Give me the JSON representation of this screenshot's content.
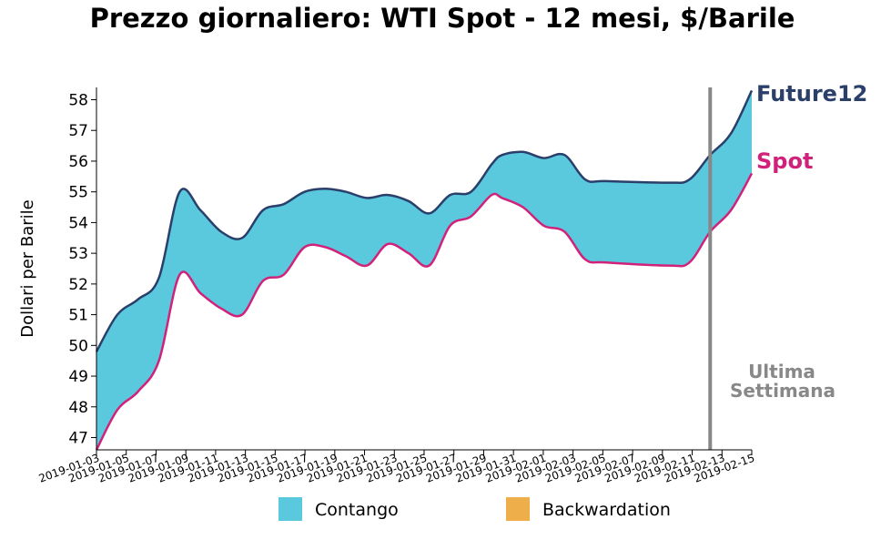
{
  "chart_data": {
    "type": "area",
    "title": "Prezzo giornaliero: WTI Spot - 12 mesi, $/Barile",
    "ylabel": "Dollari per Barile",
    "xlabel": "",
    "ylim": [
      46.6,
      58.4
    ],
    "yticks": [
      47,
      48,
      49,
      50,
      51,
      52,
      53,
      54,
      55,
      56,
      57,
      58
    ],
    "x_tick_labels": [
      "2019-01-03",
      "2019-01-05",
      "2019-01-07",
      "2019-01-09",
      "2019-01-11",
      "2019-01-13",
      "2019-01-15",
      "2019-01-17",
      "2019-01-19",
      "2019-01-21",
      "2019-01-23",
      "2019-01-25",
      "2019-01-27",
      "2019-01-29",
      "2019-01-31",
      "2019-02-01",
      "2019-02-03",
      "2019-02-05",
      "2019-02-07",
      "2019-02-09",
      "2019-02-11",
      "2019-02-13",
      "2019-02-15"
    ],
    "x": [
      "2019-01-03",
      "2019-01-04",
      "2019-01-07",
      "2019-01-08",
      "2019-01-09",
      "2019-01-10",
      "2019-01-11",
      "2019-01-14",
      "2019-01-15",
      "2019-01-16",
      "2019-01-17",
      "2019-01-18",
      "2019-01-22",
      "2019-01-23",
      "2019-01-24",
      "2019-01-25",
      "2019-01-28",
      "2019-01-29",
      "2019-01-30",
      "2019-01-31",
      "2019-02-01",
      "2019-02-04",
      "2019-02-05",
      "2019-02-06",
      "2019-02-07",
      "2019-02-08",
      "2019-02-11",
      "2019-02-12",
      "2019-02-13",
      "2019-02-14",
      "2019-02-15"
    ],
    "x_positions": [
      0,
      1,
      2,
      3,
      4,
      5,
      6,
      7,
      8,
      9,
      10,
      11,
      12,
      13,
      14,
      15,
      16,
      17,
      18,
      19,
      19.5,
      20.5,
      21.5,
      22.5,
      23.5,
      24.5,
      27.5,
      28.5,
      29.5,
      30.5,
      31.5
    ],
    "series": [
      {
        "name": "Future12",
        "color": "#2a3f6a",
        "values": [
          49.8,
          51.0,
          51.5,
          52.2,
          55.0,
          54.4,
          53.7,
          53.5,
          54.4,
          54.6,
          55.0,
          55.1,
          55.0,
          54.8,
          54.9,
          54.7,
          54.3,
          54.9,
          55.0,
          55.9,
          56.2,
          56.3,
          56.1,
          56.2,
          55.4,
          55.35,
          55.3,
          55.4,
          56.2,
          56.9,
          58.3
        ]
      },
      {
        "name": "Spot",
        "color": "#d0227a",
        "values": [
          46.6,
          47.9,
          48.5,
          49.5,
          52.3,
          51.7,
          51.2,
          51.0,
          52.1,
          52.3,
          53.2,
          53.2,
          52.9,
          52.6,
          53.3,
          53.0,
          52.6,
          53.9,
          54.2,
          54.9,
          54.8,
          54.5,
          53.9,
          53.7,
          52.8,
          52.7,
          52.6,
          52.7,
          53.7,
          54.4,
          55.6
        ]
      }
    ],
    "fill": {
      "contango_color": "#5ac8dd",
      "backwardation_color": "#eeae4a"
    },
    "vline": {
      "x_position": 29.5,
      "color": "#888888"
    },
    "annotation": [
      "Ultima",
      "Settimana"
    ],
    "legend": {
      "placement": "bottom",
      "items": [
        {
          "label": "Contango",
          "color": "#5ac8dd"
        },
        {
          "label": "Backwardation",
          "color": "#eeae4a"
        }
      ]
    },
    "grid": false
  }
}
